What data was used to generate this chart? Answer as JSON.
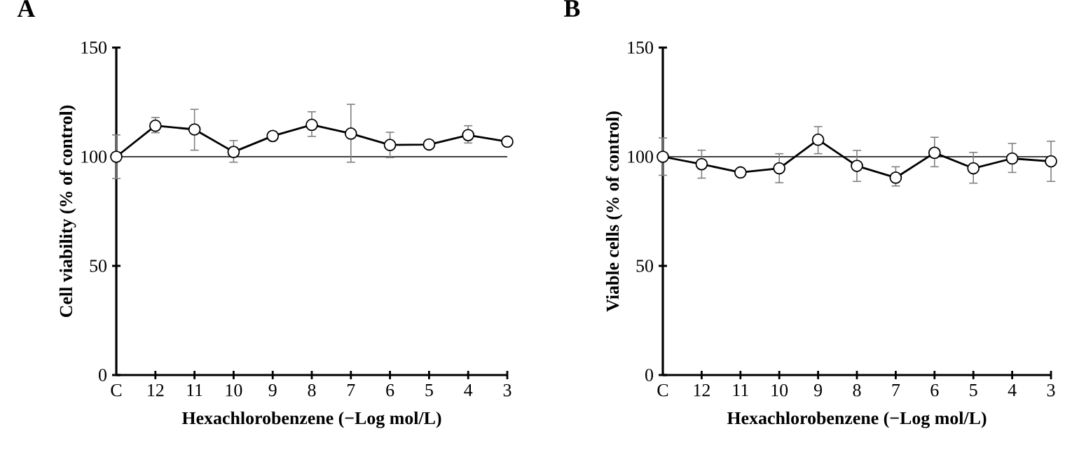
{
  "chart_data": [
    {
      "type": "line",
      "title": "A",
      "xlabel": "Hexachlorobenzene (−Log mol/L)",
      "ylabel": "Cell viability (% of control)",
      "categories": [
        "C",
        "12",
        "11",
        "10",
        "9",
        "8",
        "7",
        "6",
        "5",
        "4",
        "3"
      ],
      "series": [
        {
          "color": "#000000",
          "values": [
            100,
            114.2,
            112.5,
            102.2,
            109.5,
            114.6,
            110.6,
            105.4,
            105.6,
            109.9,
            106.9
          ],
          "errors": [
            [
              90,
              110
            ],
            [
              111,
              118
            ],
            [
              103,
              121.7
            ],
            [
              97.5,
              107.4
            ],
            null,
            [
              109.3,
              120.6
            ],
            [
              97.5,
              124
            ],
            [
              99.6,
              111.2
            ],
            null,
            [
              106.3,
              114.2
            ],
            null
          ]
        }
      ],
      "ylim": [
        0,
        150
      ],
      "yticks": [
        0,
        50,
        100,
        150
      ],
      "ref_lines": [
        {
          "axis": "y",
          "value": 100
        }
      ],
      "marker": "circle",
      "line_style": "solid"
    },
    {
      "type": "line",
      "title": "B",
      "xlabel": "Hexachlorobenzene (−Log mol/L)",
      "ylabel": "Viable cells (% of control)",
      "categories": [
        "C",
        "12",
        "11",
        "10",
        "9",
        "8",
        "7",
        "6",
        "5",
        "4",
        "3"
      ],
      "series": [
        {
          "color": "#000000",
          "values": [
            100,
            96.6,
            92.8,
            94.7,
            107.8,
            95.8,
            90.4,
            101.8,
            94.7,
            99.2,
            97.9
          ],
          "errors": [
            [
              91.5,
              108.6
            ],
            [
              90.2,
              103
            ],
            null,
            [
              88.1,
              101.4
            ],
            [
              101.4,
              113.8
            ],
            [
              88.7,
              102.9
            ],
            [
              86.6,
              95.4
            ],
            [
              95.4,
              108.9
            ],
            [
              87.9,
              102
            ],
            [
              92.8,
              106.1
            ],
            [
              88.7,
              107.1
            ]
          ]
        }
      ],
      "ylim": [
        0,
        150
      ],
      "yticks": [
        0,
        50,
        100,
        150
      ],
      "ref_lines": [
        {
          "axis": "y",
          "value": 100
        }
      ],
      "marker": "circle",
      "line_style": "solid"
    }
  ]
}
